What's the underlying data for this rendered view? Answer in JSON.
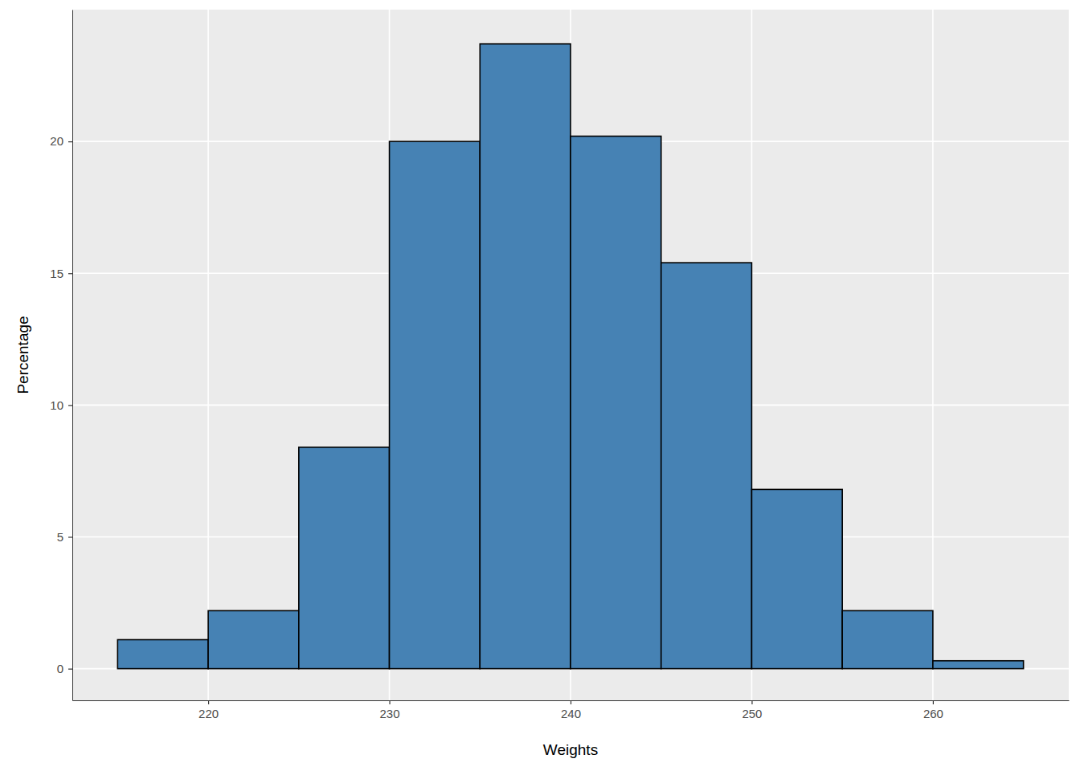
{
  "chart_data": {
    "type": "histogram",
    "xlabel": "Weights",
    "ylabel": "Percentage",
    "bins": [
      215,
      220,
      225,
      230,
      235,
      240,
      245,
      250,
      255,
      260,
      265
    ],
    "values": [
      1.1,
      2.2,
      8.4,
      20.0,
      23.7,
      20.2,
      15.4,
      6.8,
      2.2,
      0.3
    ],
    "color": "#4682b4",
    "xlim": [
      212.5,
      267.5
    ],
    "ylim": [
      -1.2,
      25
    ],
    "xticks": [
      220,
      230,
      240,
      250,
      260
    ],
    "yticks": [
      0,
      5,
      10,
      15,
      20
    ],
    "grid": true
  }
}
